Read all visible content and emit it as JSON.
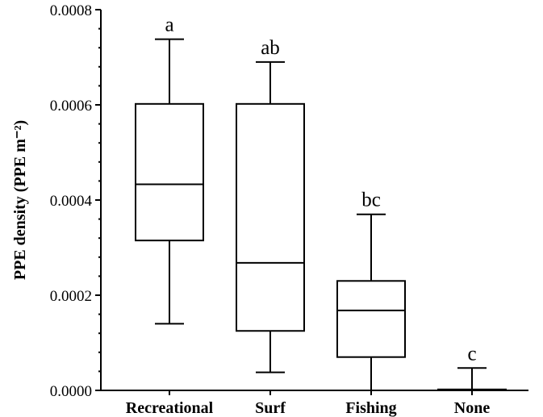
{
  "chart_data": {
    "type": "box",
    "ylabel": "PPE density (PPE m⁻²)",
    "ylim": [
      0,
      0.0008
    ],
    "yticks": [
      0.0,
      0.0002,
      0.0004,
      0.0006,
      0.0008
    ],
    "ytick_labels": [
      "0.0000",
      "0.0002",
      "0.0004",
      "0.0006",
      "0.0008"
    ],
    "categories": [
      "Recreational",
      "Surf",
      "Fishing",
      "None"
    ],
    "boxes": [
      {
        "category": "Recreational",
        "min": 0.00014,
        "q1": 0.000315,
        "median": 0.000433,
        "q3": 0.000602,
        "max": 0.000738,
        "group": "a"
      },
      {
        "category": "Surf",
        "min": 3.8e-05,
        "q1": 0.000125,
        "median": 0.000268,
        "q3": 0.000602,
        "max": 0.00069,
        "group": "ab"
      },
      {
        "category": "Fishing",
        "min": 0.0,
        "q1": 7e-05,
        "median": 0.000168,
        "q3": 0.00023,
        "max": 0.00037,
        "group": "bc"
      },
      {
        "category": "None",
        "min": 0.0,
        "q1": 0.0,
        "median": 0.0,
        "q3": 2e-06,
        "max": 4.7e-05,
        "group": "c"
      }
    ],
    "grid": false,
    "legend": "none"
  }
}
